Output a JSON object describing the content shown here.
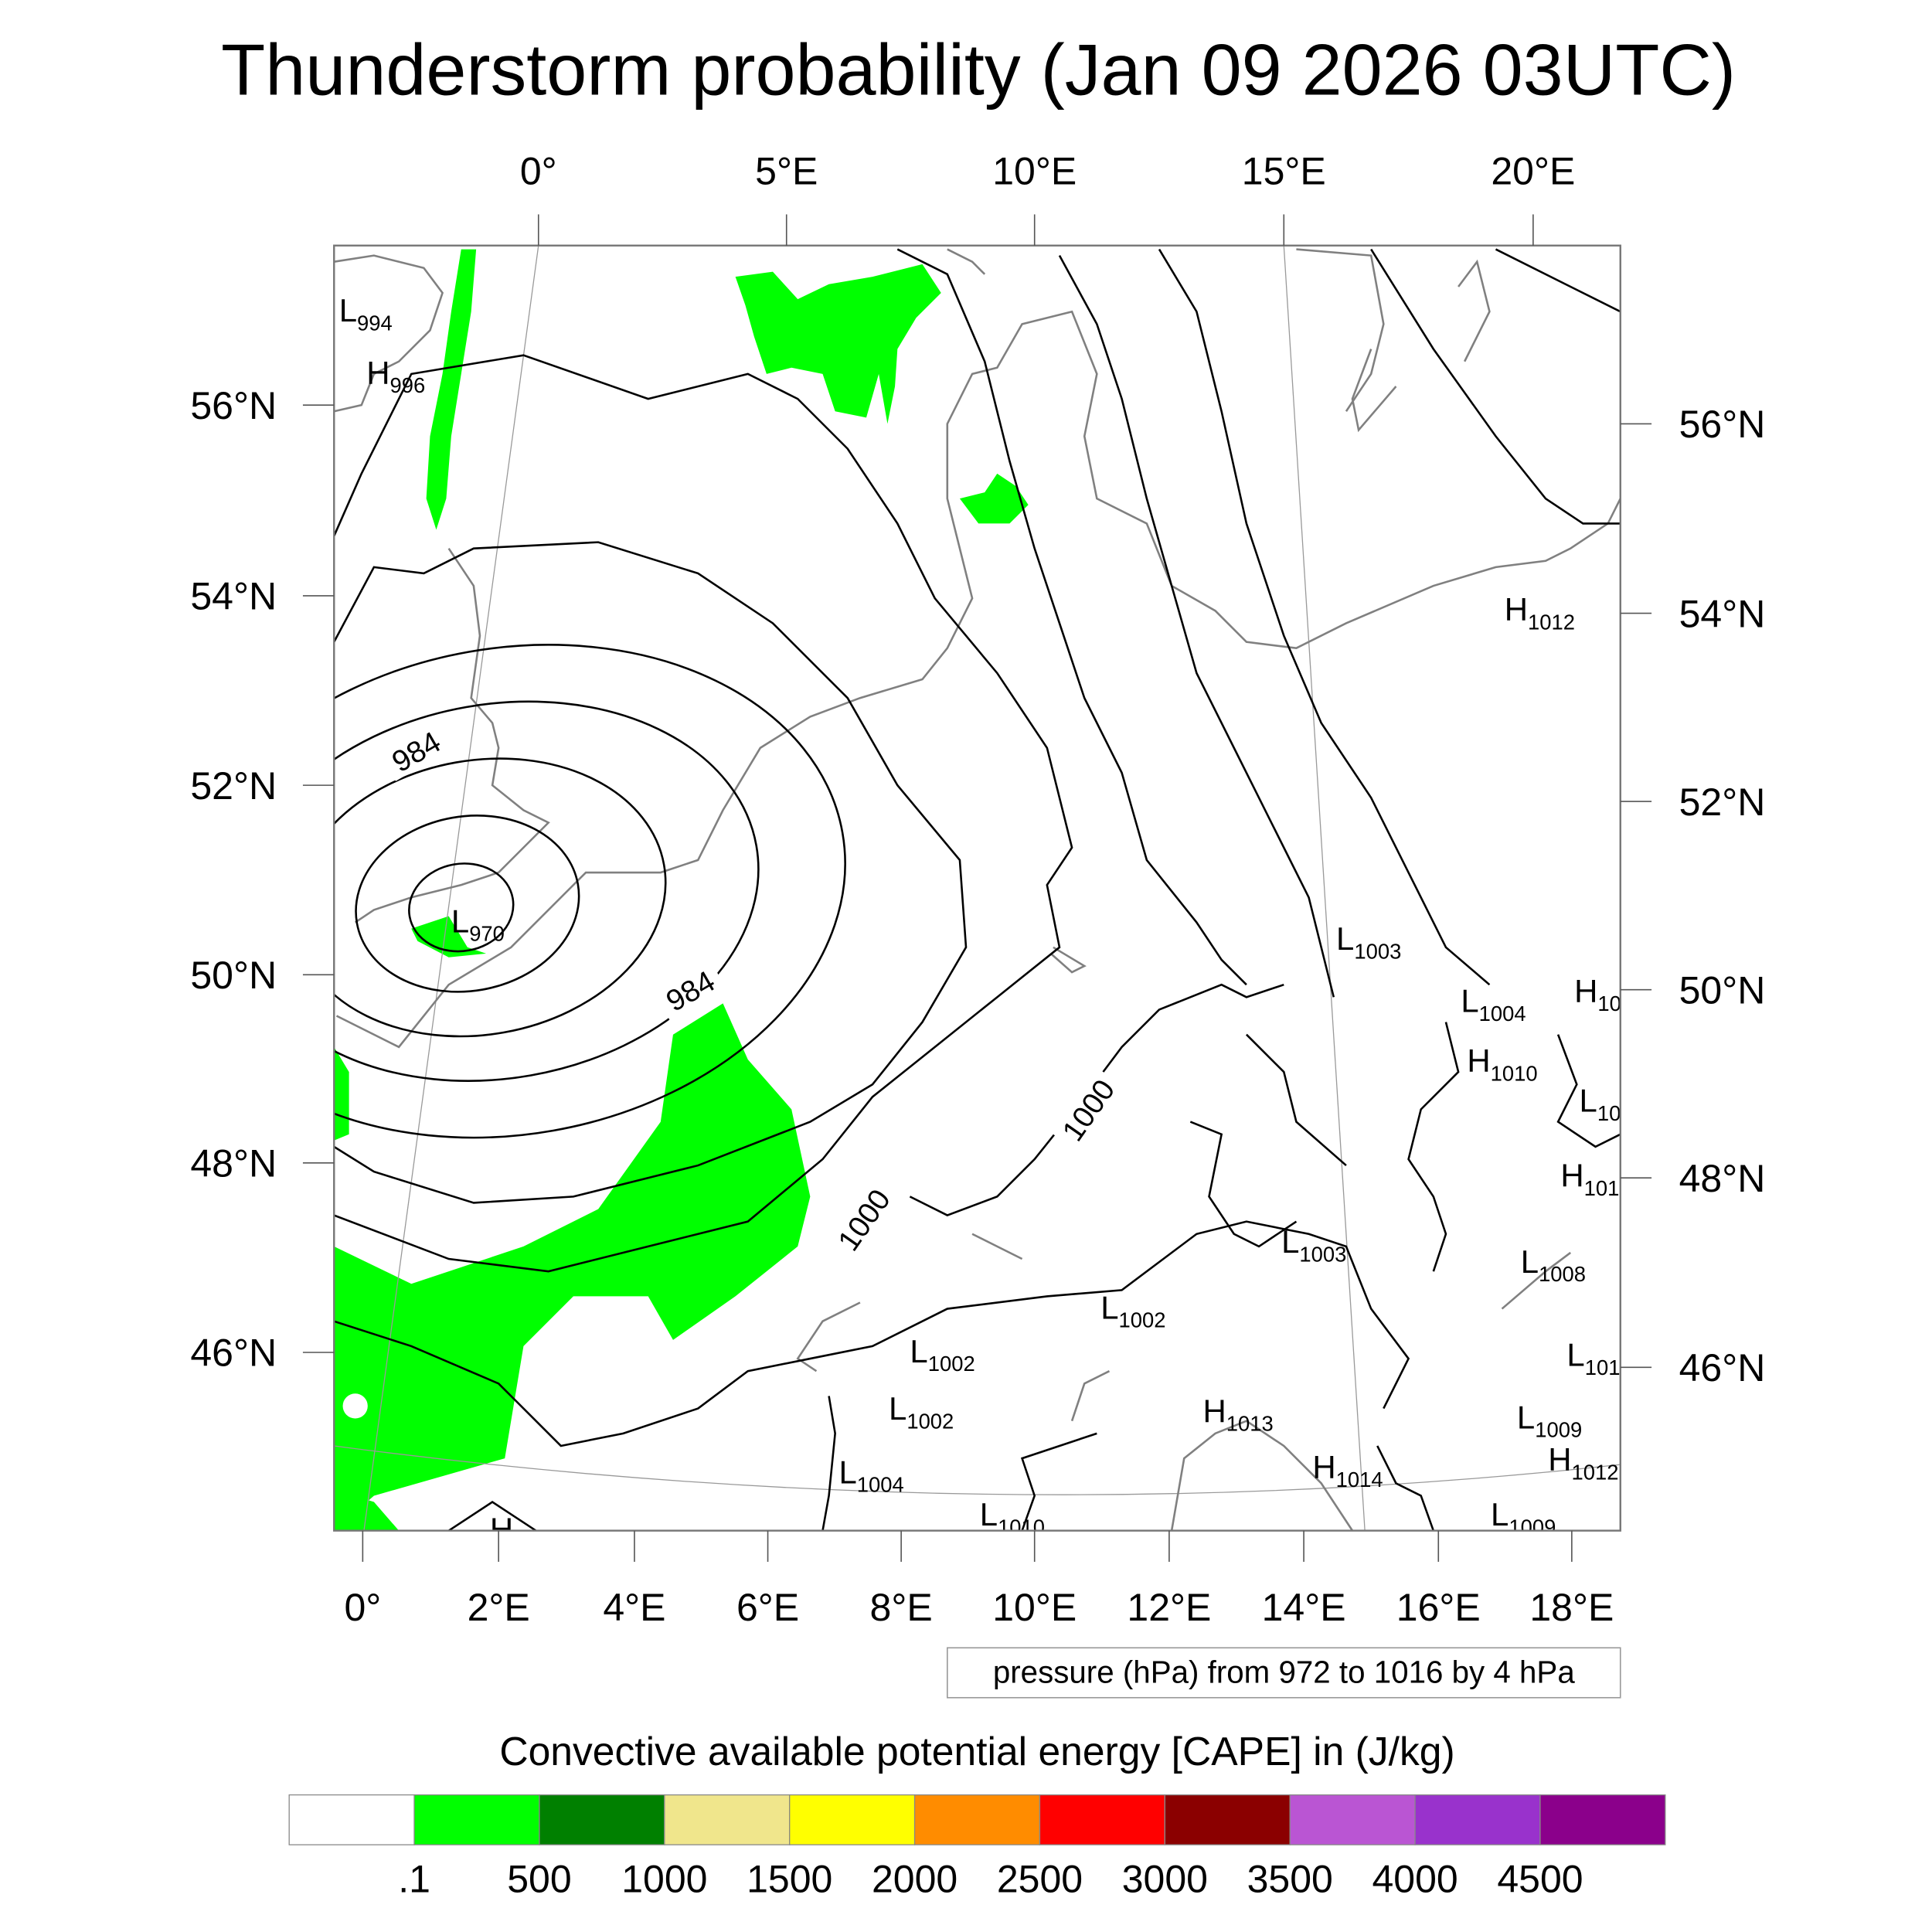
{
  "title": "Thunderstorm probability (Jan 09 2026 03UTC)",
  "axes": {
    "top_lon_labels": [
      "0°",
      "5°E",
      "10°E",
      "15°E",
      "20°E"
    ],
    "bottom_lon_labels": [
      "0°",
      "2°E",
      "4°E",
      "6°E",
      "8°E",
      "10°E",
      "12°E",
      "14°E",
      "16°E",
      "18°E"
    ],
    "left_lat_labels": [
      "56°N",
      "54°N",
      "52°N",
      "50°N",
      "48°N",
      "46°N"
    ],
    "right_lat_labels": [
      "56°N",
      "54°N",
      "52°N",
      "50°N",
      "48°N",
      "46°N"
    ]
  },
  "pressure_note": "pressure (hPa) from 972 to 1016 by 4 hPa",
  "contour_labels": [
    "984",
    "984",
    "1000",
    "1000"
  ],
  "pressure_centers": [
    {
      "type": "L",
      "value": "994"
    },
    {
      "type": "H",
      "value": "996"
    },
    {
      "type": "L",
      "value": "970"
    },
    {
      "type": "H",
      "value": "1012"
    },
    {
      "type": "L",
      "value": "1003"
    },
    {
      "type": "L",
      "value": "1004"
    },
    {
      "type": "H",
      "value": "10"
    },
    {
      "type": "H",
      "value": "1010"
    },
    {
      "type": "L",
      "value": "10"
    },
    {
      "type": "H",
      "value": "101"
    },
    {
      "type": "L",
      "value": "1003"
    },
    {
      "type": "L",
      "value": "1008"
    },
    {
      "type": "L",
      "value": "1002"
    },
    {
      "type": "L",
      "value": "1002"
    },
    {
      "type": "L",
      "value": "101"
    },
    {
      "type": "L",
      "value": "1002"
    },
    {
      "type": "H",
      "value": "1013"
    },
    {
      "type": "L",
      "value": "1009"
    },
    {
      "type": "H",
      "value": "1012"
    },
    {
      "type": "L",
      "value": "1004"
    },
    {
      "type": "H",
      "value": "1014"
    },
    {
      "type": "L",
      "value": "1010"
    },
    {
      "type": "L",
      "value": "1009"
    },
    {
      "type": "H",
      "value": ""
    }
  ],
  "colorbar": {
    "title": "Convective available potential energy [CAPE] in (J/kg)",
    "colors": [
      "#ffffff",
      "#00ff00",
      "#008000",
      "#f0e68c",
      "#ffff00",
      "#ff8c00",
      "#ff0000",
      "#8b0000",
      "#ba55d3",
      "#9932cc",
      "#8b008b"
    ],
    "labels": [
      ".1",
      "500",
      "1000",
      "1500",
      "2000",
      "2500",
      "3000",
      "3500",
      "4000",
      "4500"
    ]
  },
  "colors": {
    "cape_green": "#00ff00",
    "coastline": "#808080",
    "isobar": "#000000"
  }
}
